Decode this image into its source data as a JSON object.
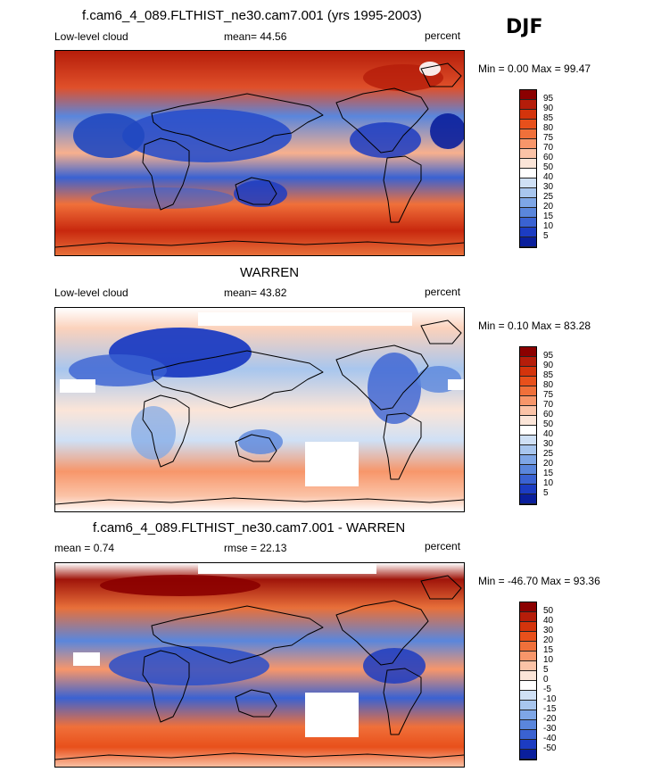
{
  "season": "DJF",
  "panels": [
    {
      "title": "f.cam6_4_089.FLTHIST_ne30.cam7.001 (yrs 1995-2003)",
      "left_label": "Low-level cloud",
      "center_label": "mean=  44.56",
      "right_label": "percent",
      "minmax": "Min =   0.00 Max =  99.47",
      "colorbar": {
        "labels": [
          "95",
          "90",
          "85",
          "80",
          "75",
          "70",
          "60",
          "50",
          "40",
          "30",
          "25",
          "20",
          "15",
          "10",
          "5"
        ],
        "colors": [
          "#8b0000",
          "#b51d0a",
          "#d4340c",
          "#e8501b",
          "#f0703a",
          "#f7966a",
          "#fbc3a7",
          "#fbe5d8",
          "#ffffff",
          "#cfe0f5",
          "#a8c6ee",
          "#7ea6e6",
          "#5a86dc",
          "#3a62d2",
          "#1c3cc2",
          "#0a1f9c"
        ],
        "map_palette": "cloud"
      }
    },
    {
      "title": "WARREN",
      "left_label": "Low-level cloud",
      "center_label": "mean=  43.82",
      "right_label": "percent",
      "minmax": "Min =   0.10 Max =  83.28",
      "colorbar": {
        "labels": [
          "95",
          "90",
          "85",
          "80",
          "75",
          "70",
          "60",
          "50",
          "40",
          "30",
          "25",
          "20",
          "15",
          "10",
          "5"
        ],
        "colors": [
          "#8b0000",
          "#b51d0a",
          "#d4340c",
          "#e8501b",
          "#f0703a",
          "#f7966a",
          "#fbc3a7",
          "#fbe5d8",
          "#ffffff",
          "#cfe0f5",
          "#a8c6ee",
          "#7ea6e6",
          "#5a86dc",
          "#3a62d2",
          "#1c3cc2",
          "#0a1f9c"
        ],
        "map_palette": "obs"
      }
    },
    {
      "title": "f.cam6_4_089.FLTHIST_ne30.cam7.001 - WARREN",
      "left_label": "mean =   0.74",
      "center_label": "rmse =  22.13",
      "right_label": "percent",
      "minmax": "Min = -46.70 Max =  93.36",
      "colorbar": {
        "labels": [
          "50",
          "40",
          "30",
          "20",
          "15",
          "10",
          "5",
          "0",
          "-5",
          "-10",
          "-15",
          "-20",
          "-30",
          "-40",
          "-50"
        ],
        "colors": [
          "#8b0000",
          "#b51d0a",
          "#d4340c",
          "#e8501b",
          "#f0703a",
          "#f7966a",
          "#fbc3a7",
          "#fbe5d8",
          "#ffffff",
          "#cfe0f5",
          "#a8c6ee",
          "#7ea6e6",
          "#5a86dc",
          "#3a62d2",
          "#1c3cc2",
          "#0a1f9c"
        ],
        "map_palette": "diff"
      }
    }
  ]
}
